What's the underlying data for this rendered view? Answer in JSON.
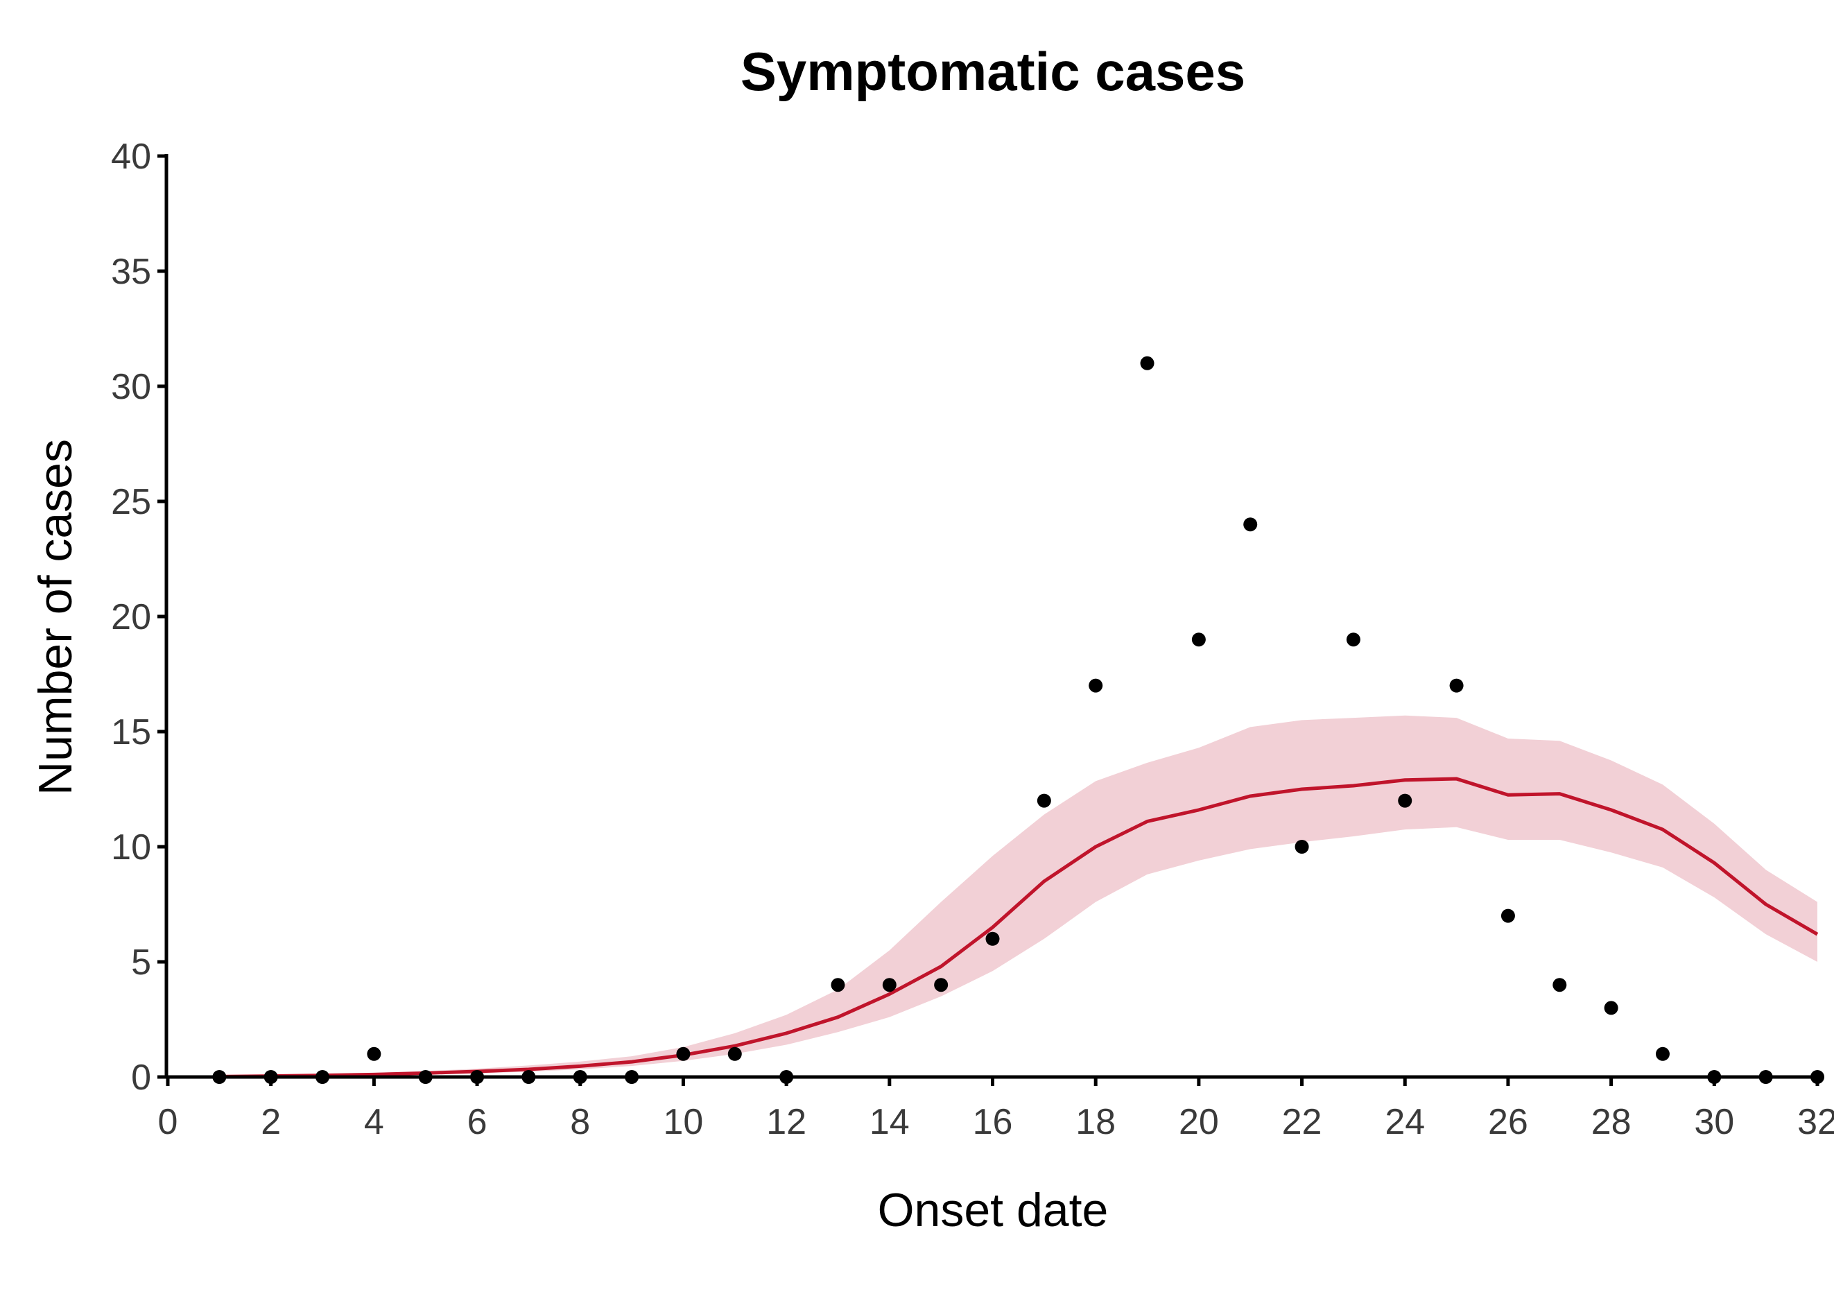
{
  "colors": {
    "model_line": "#c0142b",
    "model_band": "#f2d0d6",
    "observed_points": "#000000",
    "axis": "#000000",
    "tick_text": "#3a3a3a"
  },
  "chart_data": {
    "type": "line",
    "title": "Symptomatic cases",
    "xlabel": "Onset date",
    "ylabel": "Number of cases",
    "xlim": [
      0,
      32
    ],
    "ylim": [
      0,
      40
    ],
    "xticks": [
      0,
      2,
      4,
      6,
      8,
      10,
      12,
      14,
      16,
      18,
      20,
      22,
      24,
      26,
      28,
      30,
      32
    ],
    "yticks": [
      0,
      5,
      10,
      15,
      20,
      25,
      30,
      35,
      40
    ],
    "grid": false,
    "legend": "none",
    "observed": {
      "x": [
        1,
        2,
        3,
        4,
        5,
        6,
        7,
        8,
        9,
        10,
        11,
        12,
        13,
        14,
        15,
        16,
        17,
        18,
        19,
        20,
        21,
        22,
        23,
        24,
        25,
        26,
        27,
        28,
        29,
        30,
        31,
        32
      ],
      "y": [
        0,
        0,
        0,
        1,
        0,
        0,
        0,
        0,
        0,
        1,
        1,
        0,
        4,
        4,
        4,
        6,
        12,
        17,
        31,
        19,
        24,
        10,
        19,
        12,
        17,
        7,
        4,
        3,
        1,
        0,
        0,
        0
      ]
    },
    "model": {
      "x": [
        1,
        2,
        3,
        4,
        5,
        6,
        7,
        8,
        9,
        10,
        11,
        12,
        13,
        14,
        15,
        16,
        17,
        18,
        19,
        20,
        21,
        22,
        23,
        24,
        25,
        26,
        27,
        28,
        29,
        30,
        31,
        32
      ],
      "median": [
        0.02,
        0.04,
        0.07,
        0.11,
        0.17,
        0.24,
        0.33,
        0.47,
        0.66,
        0.95,
        1.35,
        1.9,
        2.6,
        3.6,
        4.8,
        6.5,
        8.5,
        10.0,
        11.1,
        11.6,
        12.2,
        12.5,
        12.65,
        12.9,
        12.95,
        12.25,
        12.3,
        11.6,
        10.75,
        9.3,
        7.5,
        6.2
      ],
      "lower": [
        0.01,
        0.02,
        0.04,
        0.07,
        0.11,
        0.16,
        0.23,
        0.33,
        0.48,
        0.7,
        1.0,
        1.4,
        1.95,
        2.6,
        3.5,
        4.6,
        6.0,
        7.6,
        8.8,
        9.4,
        9.9,
        10.2,
        10.45,
        10.75,
        10.85,
        10.3,
        10.3,
        9.75,
        9.1,
        7.8,
        6.2,
        5.0
      ],
      "upper": [
        0.04,
        0.07,
        0.12,
        0.18,
        0.26,
        0.36,
        0.5,
        0.67,
        0.9,
        1.3,
        1.9,
        2.7,
        3.8,
        5.5,
        7.6,
        9.6,
        11.4,
        12.85,
        13.65,
        14.3,
        15.2,
        15.5,
        15.6,
        15.7,
        15.6,
        14.7,
        14.6,
        13.75,
        12.7,
        11.0,
        9.0,
        7.6
      ]
    }
  }
}
